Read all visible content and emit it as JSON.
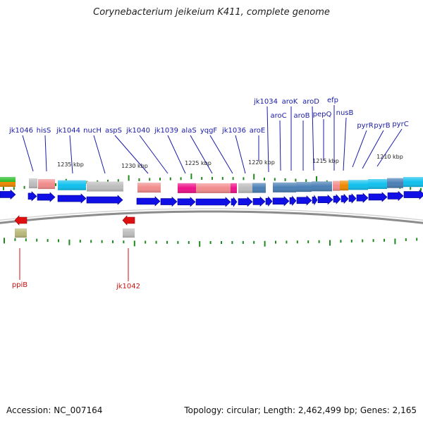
{
  "title": "Corynebacterium jeikeium K411, complete genome",
  "accession": "Accession: NC_007164",
  "summary": "Topology: circular; Length: 2,462,499 bp; Genes: 2,165",
  "colors": {
    "forward_arrow": "#1010e6",
    "reverse_arrow": "#e01010",
    "forward_label": "#1a1aa8",
    "reverse_label": "#c81010",
    "tick": "#1e8a1e",
    "backbone": "#8c8c8c"
  },
  "scale_labels": [
    {
      "text": "1235 kbp",
      "kbp": 1235
    },
    {
      "text": "1230 kbp",
      "kbp": 1230
    },
    {
      "text": "1225 kbp",
      "kbp": 1225
    },
    {
      "text": "1220 kbp",
      "kbp": 1220
    },
    {
      "text": "1215 kbp",
      "kbp": 1215
    },
    {
      "text": "1210 kbp",
      "kbp": 1210
    }
  ],
  "forward_genes": [
    {
      "label": "jk1046"
    },
    {
      "label": "hisS"
    },
    {
      "label": "jk1044"
    },
    {
      "label": "nucH"
    },
    {
      "label": "aspS"
    },
    {
      "label": "jk1040"
    },
    {
      "label": "jk1039"
    },
    {
      "label": "alaS"
    },
    {
      "label": "yqgF"
    },
    {
      "label": "jk1036"
    },
    {
      "label": "aroE"
    },
    {
      "label": "jk1034"
    },
    {
      "label": "aroC"
    },
    {
      "label": "aroK"
    },
    {
      "label": "aroB"
    },
    {
      "label": "aroD"
    },
    {
      "label": "pepQ"
    },
    {
      "label": "efp"
    },
    {
      "label": "nusB"
    },
    {
      "label": "pyrR"
    },
    {
      "label": "pyrB"
    },
    {
      "label": "pyrC"
    }
  ],
  "reverse_genes": [
    {
      "label": "ppiB"
    },
    {
      "label": "jk1042"
    }
  ]
}
